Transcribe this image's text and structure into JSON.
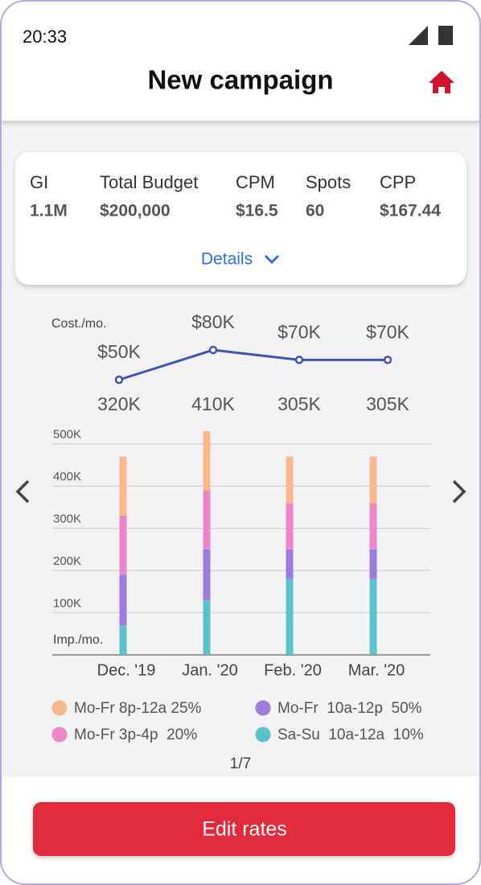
{
  "status_bar": {
    "time": "20:33"
  },
  "header": {
    "title": "New campaign"
  },
  "summary": {
    "metrics": [
      {
        "label": "GI",
        "value": "1.1M"
      },
      {
        "label": "Total Budget",
        "value": "$200,000"
      },
      {
        "label": "CPM",
        "value": "$16.5"
      },
      {
        "label": "Spots",
        "value": "60"
      },
      {
        "label": "CPP",
        "value": "$167.44"
      }
    ],
    "details": "Details"
  },
  "chart_data": [
    {
      "type": "line",
      "y_label": "Cost./mo.",
      "color": "#3a55b4",
      "values": [
        50000,
        80000,
        70000,
        70000
      ],
      "value_labels": [
        "$50K",
        "$80K",
        "$70K",
        "$70K"
      ],
      "annotations": [
        "320K",
        "410K",
        "305K",
        "305K"
      ]
    },
    {
      "type": "bar",
      "stacked": true,
      "y_label": "Imp./mo.",
      "grid": true,
      "categories": [
        "Dec. '19",
        "Jan. '20",
        "Feb. '20",
        "Mar. '20"
      ],
      "ylim": [
        0,
        530000
      ],
      "yticks": [
        {
          "value": 100000,
          "label": "100K"
        },
        {
          "value": 200000,
          "label": "200K"
        },
        {
          "value": 300000,
          "label": "300K"
        },
        {
          "value": 400000,
          "label": "400K"
        },
        {
          "value": 500000,
          "label": "500K"
        }
      ],
      "series": [
        {
          "name": "Sa-Su  10a-12a  10%",
          "color": "#5bc2c8",
          "values": [
            70000,
            130000,
            180000,
            180000
          ]
        },
        {
          "name": "Mo-Fr  10a-12p  50%",
          "color": "#9a7ddc",
          "values": [
            120000,
            120000,
            70000,
            70000
          ]
        },
        {
          "name": "Mo-Fr 3p-4p  20%",
          "color": "#ef86cb",
          "values": [
            140000,
            140000,
            110000,
            110000
          ]
        },
        {
          "name": "Mo-Fr 8p-12a 25%",
          "color": "#f9b98f",
          "values": [
            140000,
            140000,
            110000,
            110000
          ]
        }
      ]
    }
  ],
  "pagination": "1/7",
  "button": {
    "label": "Edit rates"
  }
}
